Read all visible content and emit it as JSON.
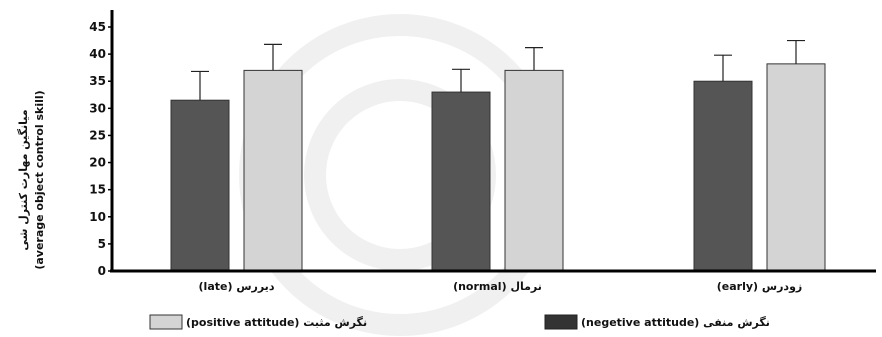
{
  "chart_data": {
    "type": "bar",
    "categories": [
      "(late) دیررس",
      "(normal) نرمال",
      "(early) زودرس"
    ],
    "series": [
      {
        "name": "(negetive attitude) نگرش منفی",
        "color": "#555555",
        "values": [
          31.5,
          33,
          35
        ],
        "errors": [
          5.3,
          4.2,
          4.8
        ]
      },
      {
        "name": "(positive attitude) نگرش مثبت",
        "color": "#d4d4d4",
        "values": [
          37,
          37,
          38.2
        ],
        "errors": [
          4.8,
          4.2,
          4.3
        ]
      }
    ],
    "ylabel_fa": "میانگین مهارت کنترل شی",
    "ylabel_en": "(average object control skill)",
    "ylim": [
      0,
      45
    ],
    "yticks": [
      0,
      5,
      10,
      15,
      20,
      25,
      30,
      35,
      40,
      45
    ],
    "legend_position": "bottom",
    "grid": false
  }
}
